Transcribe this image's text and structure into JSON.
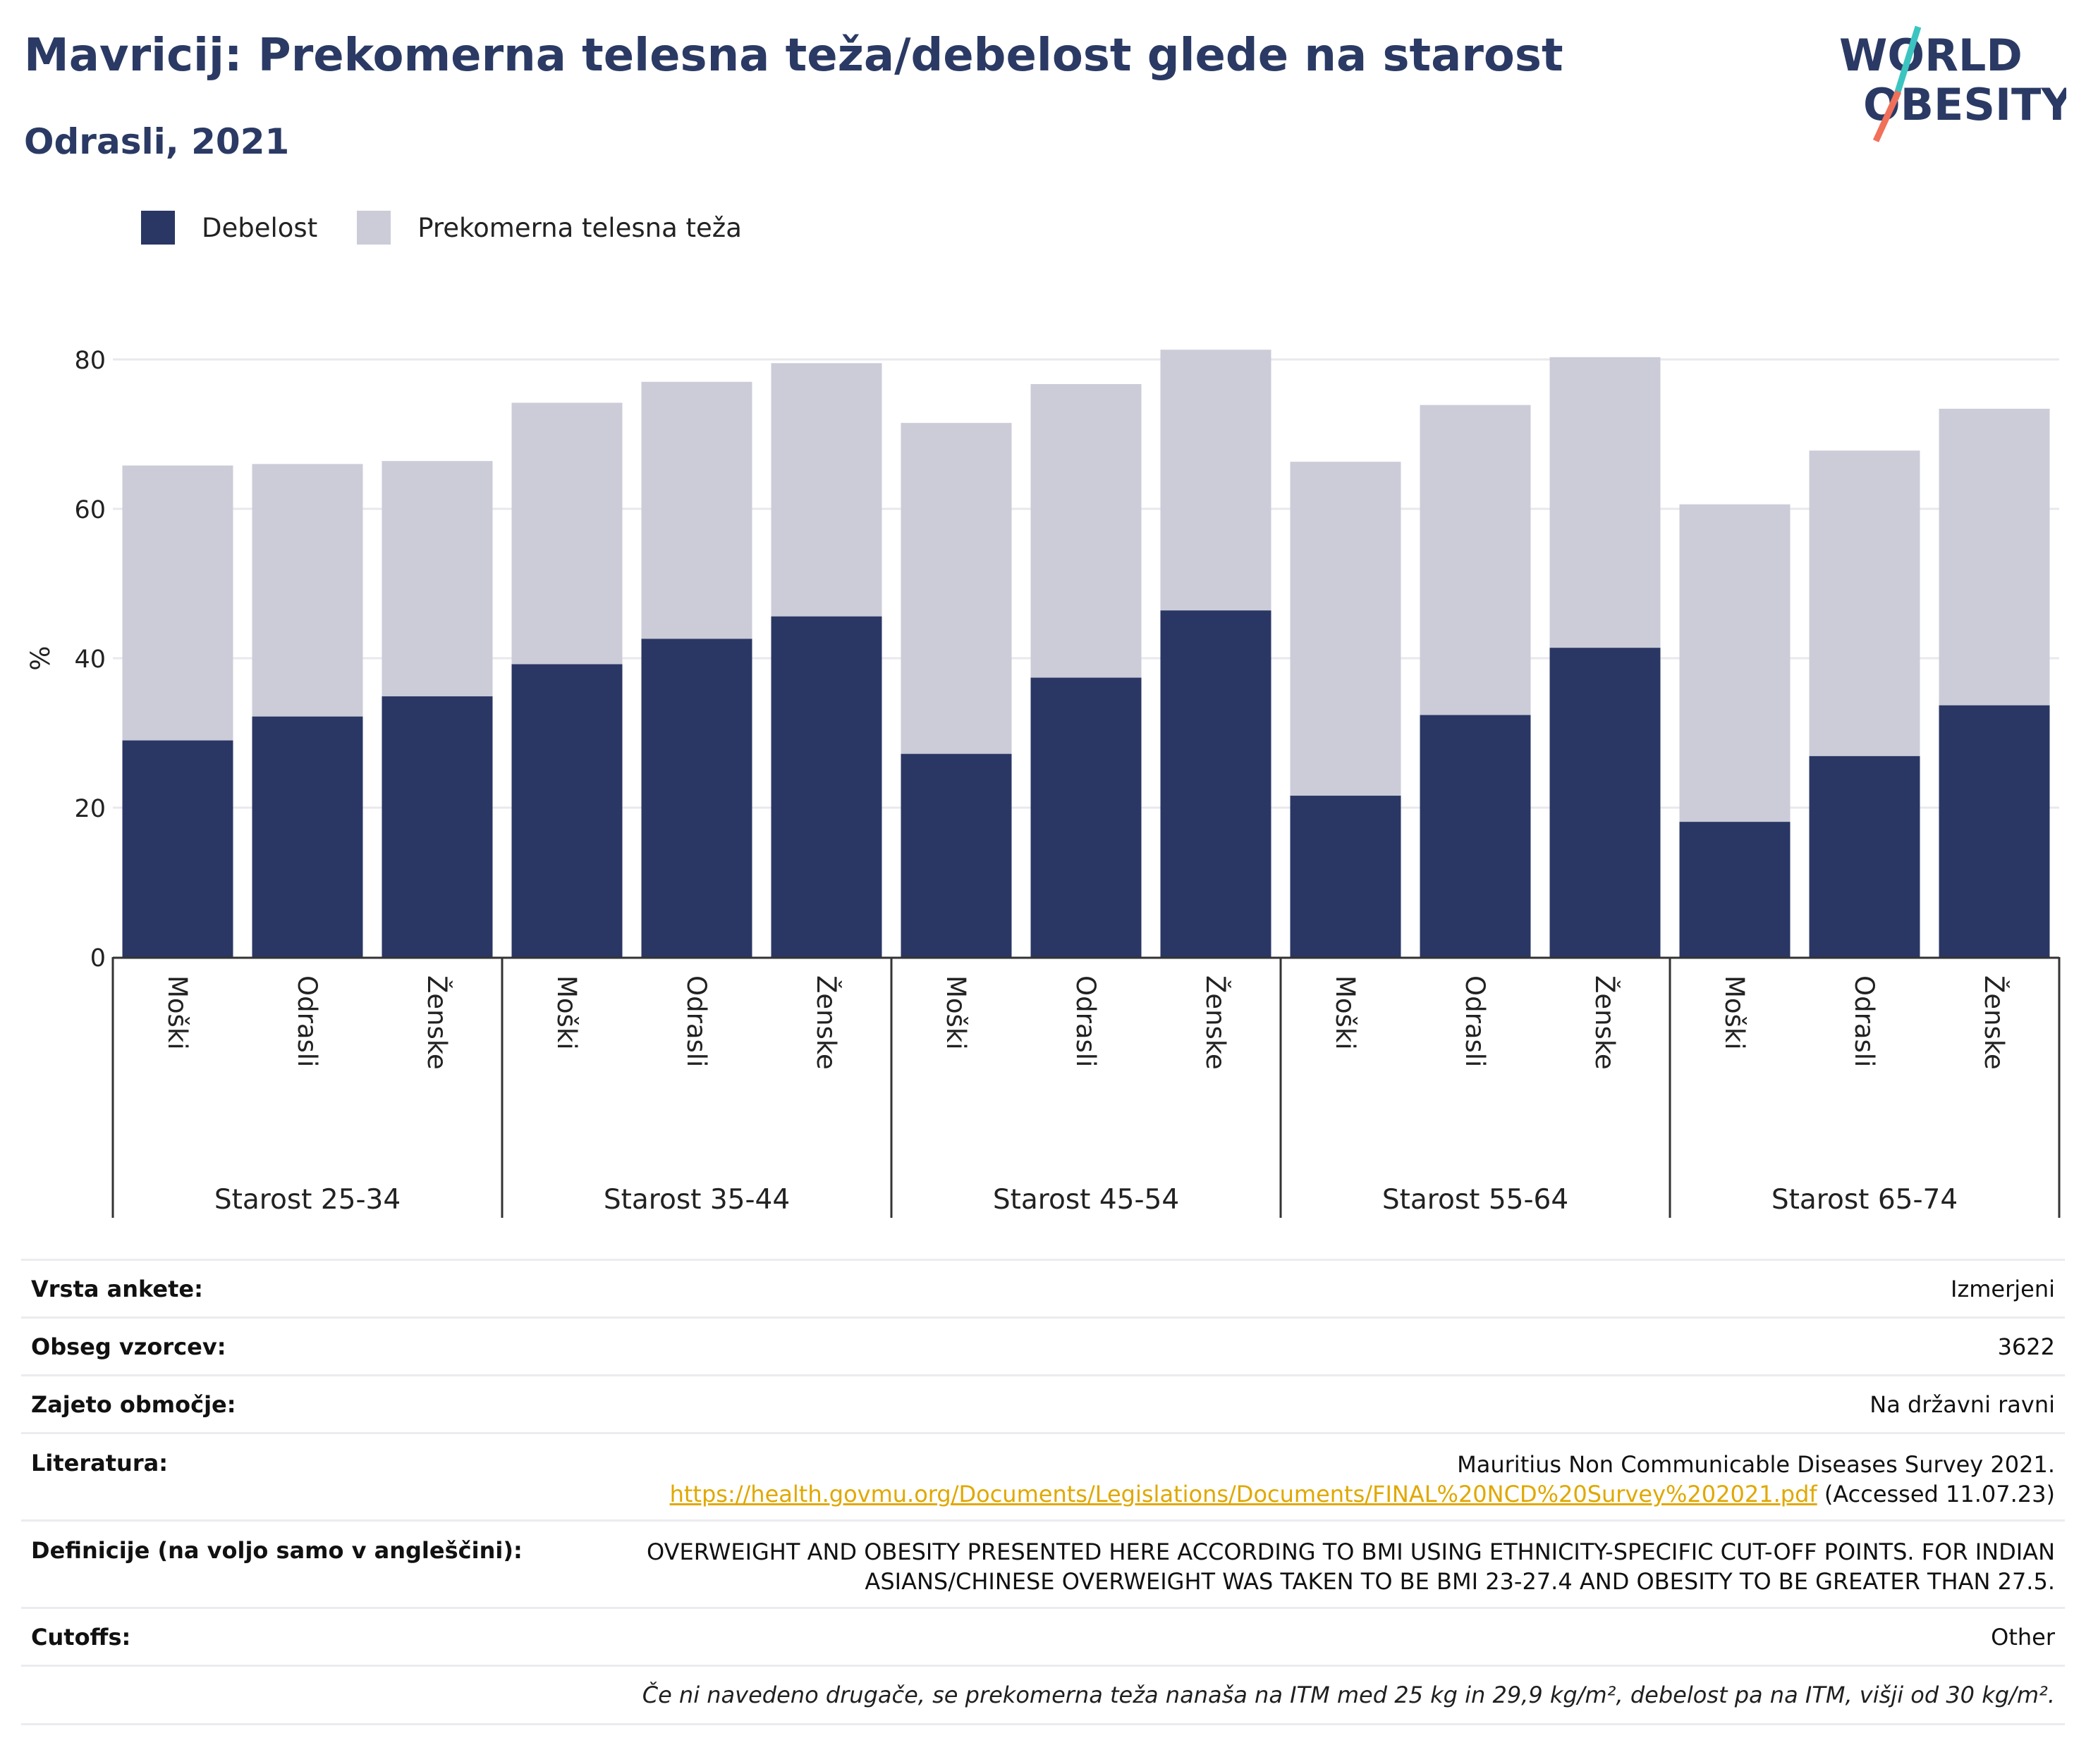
{
  "header": {
    "title": "Mavricij: Prekomerna telesna teža/debelost glede na starost",
    "subtitle": "Odrasli, 2021"
  },
  "logo": {
    "line1": "WORLD",
    "line2": "OBESITY",
    "colors": {
      "text": "#2a3a64",
      "slash_top": "#3cc5c0",
      "slash_bottom": "#f0705a"
    }
  },
  "legend": {
    "items": [
      {
        "label": "Debelost",
        "color": "#2a3764"
      },
      {
        "label": "Prekomerna telesna teža",
        "color": "#cbccd8"
      }
    ]
  },
  "chart_data": {
    "type": "bar",
    "stacked": true,
    "ylabel": "%",
    "ylim": [
      0,
      85
    ],
    "yticks": [
      0,
      20,
      40,
      60,
      80
    ],
    "grid": true,
    "legend_position": "top-left",
    "groups": [
      {
        "label": "Starost 25-34",
        "categories": [
          "Moški",
          "Odrasli",
          "Ženske"
        ],
        "obesity": [
          29.0,
          32.2,
          34.9
        ],
        "overweight_total": [
          65.8,
          66.0,
          66.4
        ]
      },
      {
        "label": "Starost 35-44",
        "categories": [
          "Moški",
          "Odrasli",
          "Ženske"
        ],
        "obesity": [
          39.2,
          42.6,
          45.6
        ],
        "overweight_total": [
          74.2,
          77.0,
          79.5
        ]
      },
      {
        "label": "Starost 45-54",
        "categories": [
          "Moški",
          "Odrasli",
          "Ženske"
        ],
        "obesity": [
          27.2,
          37.4,
          46.4
        ],
        "overweight_total": [
          71.5,
          76.7,
          81.3
        ]
      },
      {
        "label": "Starost 55-64",
        "categories": [
          "Moški",
          "Odrasli",
          "Ženske"
        ],
        "obesity": [
          21.6,
          32.4,
          41.4
        ],
        "overweight_total": [
          66.3,
          73.9,
          80.3
        ]
      },
      {
        "label": "Starost 65-74",
        "categories": [
          "Moški",
          "Odrasli",
          "Ženske"
        ],
        "obesity": [
          18.1,
          26.9,
          33.7
        ],
        "overweight_total": [
          60.6,
          67.8,
          73.4
        ]
      }
    ]
  },
  "meta": {
    "survey_type": {
      "key": "Vrsta ankete:",
      "value": "Izmerjeni"
    },
    "sample_size": {
      "key": "Obseg vzorcev:",
      "value": "3622"
    },
    "coverage": {
      "key": "Zajeto območje:",
      "value": "Na državni ravni"
    },
    "reference": {
      "key": "Literatura:",
      "line1": "Mauritius Non Communicable Diseases Survey 2021.",
      "link": "https://health.govmu.org/Documents/Legislations/Documents/FINAL%20NCD%20Survey%202021.pdf",
      "accessed": " (Accessed 11.07.23)"
    },
    "definitions": {
      "key": "Definicije (na voljo samo v angleščini):",
      "line1": "OVERWEIGHT AND OBESITY PRESENTED HERE ACCORDING TO BMI USING ETHNICITY-SPECIFIC CUT-OFF POINTS. FOR INDIAN",
      "line2": "ASIANS/CHINESE OVERWEIGHT WAS TAKEN TO BE BMI 23-27.4 AND OBESITY TO BE GREATER THAN 27.5."
    },
    "cutoffs": {
      "key": "Cutoffs:",
      "value": "Other"
    },
    "note": "Če ni navedeno drugače, se prekomerna teža nanaša na ITM med 25 kg in 29,9 kg/m², debelost pa na ITM, višji od 30 kg/m²."
  }
}
